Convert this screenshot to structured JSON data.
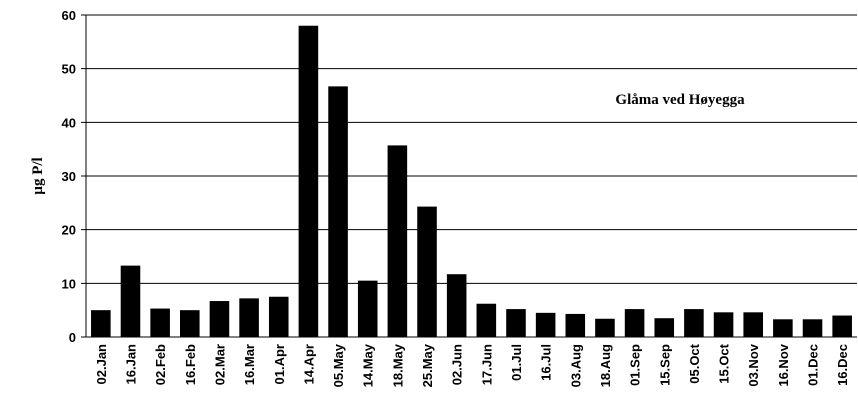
{
  "chart_data": {
    "type": "bar",
    "annotation": "Glåma ved Høyegga",
    "y_label": "µg P/l",
    "categories": [
      "02.Jan",
      "16.Jan",
      "02.Feb",
      "16.Feb",
      "02.Mar",
      "16.Mar",
      "01.Apr",
      "14.Apr",
      "05.May",
      "14.May",
      "18.May",
      "25.May",
      "02.Jun",
      "17.Jun",
      "01.Jul",
      "16.Jul",
      "03.Aug",
      "18.Aug",
      "01.Sep",
      "15.Sep",
      "05.Oct",
      "15.Oct",
      "03.Nov",
      "16.Nov",
      "01.Dec",
      "16.Dec"
    ],
    "values": [
      5,
      13.3,
      5.3,
      5,
      6.7,
      7.2,
      7.5,
      58,
      46.7,
      10.5,
      35.7,
      24.3,
      11.7,
      6.2,
      5.2,
      4.5,
      4.3,
      3.4,
      5.2,
      3.5,
      5.2,
      4.6,
      4.6,
      3.3,
      3.3,
      4.0
    ],
    "color": "#000000",
    "ylim": [
      0,
      60
    ],
    "yticks": [
      0,
      10,
      20,
      30,
      40,
      50,
      60
    ],
    "grid": true
  }
}
